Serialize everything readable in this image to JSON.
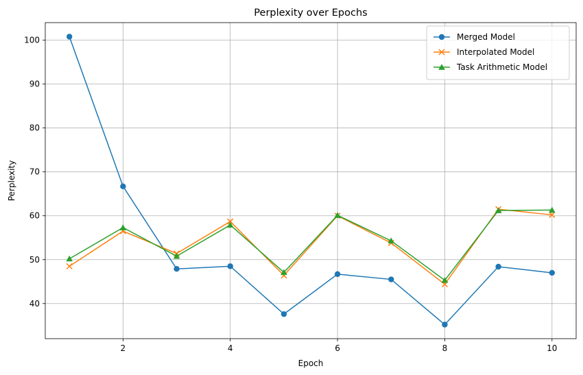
{
  "chart_data": {
    "type": "line",
    "title": "Perplexity over Epochs",
    "xlabel": "Epoch",
    "ylabel": "Perplexity",
    "x": [
      1,
      2,
      3,
      4,
      5,
      6,
      7,
      8,
      9,
      10
    ],
    "xlim": [
      0.55,
      10.45
    ],
    "ylim": [
      32.0,
      104.0
    ],
    "xticks": [
      2,
      4,
      6,
      8,
      10
    ],
    "yticks": [
      40,
      50,
      60,
      70,
      80,
      90,
      100
    ],
    "grid": true,
    "legend_position": "top-right",
    "series": [
      {
        "name": "Merged Model",
        "color": "#1f77b4",
        "marker": "circle",
        "values": [
          100.8,
          66.7,
          47.9,
          48.5,
          37.6,
          46.7,
          45.5,
          35.2,
          48.4,
          47.0
        ]
      },
      {
        "name": "Interpolated Model",
        "color": "#ff7f0e",
        "marker": "x",
        "values": [
          48.5,
          56.5,
          51.4,
          58.7,
          46.4,
          60.0,
          53.8,
          44.4,
          61.5,
          60.2
        ]
      },
      {
        "name": "Task Arithmetic Model",
        "color": "#2ca02c",
        "marker": "triangle",
        "values": [
          50.2,
          57.3,
          50.8,
          57.9,
          47.1,
          60.1,
          54.3,
          45.3,
          61.2,
          61.3
        ]
      }
    ]
  }
}
